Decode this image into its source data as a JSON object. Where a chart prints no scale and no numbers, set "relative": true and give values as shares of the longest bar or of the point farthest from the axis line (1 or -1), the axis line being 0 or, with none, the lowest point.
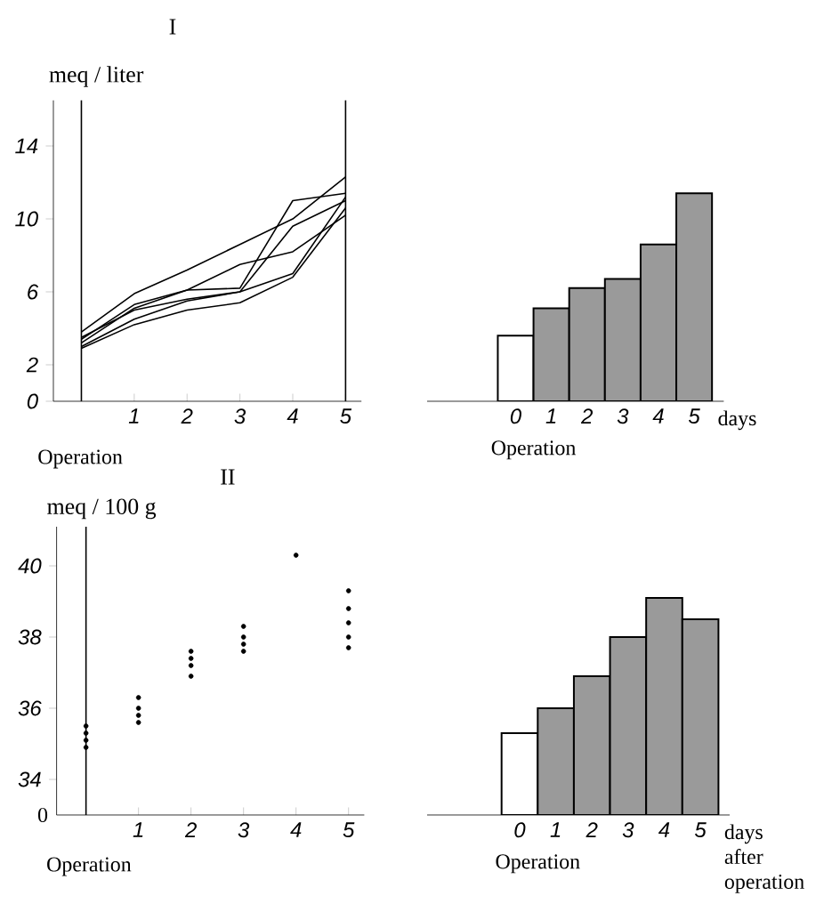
{
  "chart_data": [
    {
      "type": "line",
      "title": "I",
      "ylabel": "meq / liter",
      "x": [
        0,
        1,
        2,
        3,
        4,
        5
      ],
      "xlim": [
        -0.53,
        5.3
      ],
      "xticks": [
        1,
        2,
        3,
        4,
        5
      ],
      "ylim": [
        0,
        16.5
      ],
      "yticks": [
        0,
        2,
        6,
        10,
        14
      ],
      "ref_lines": [
        {
          "axis": "x",
          "value": 0
        },
        {
          "axis": "x",
          "value": 5
        }
      ],
      "annotations": [
        "Operation"
      ],
      "series": [
        {
          "color": "#000000",
          "values": [
            3.8,
            5.9,
            7.2,
            8.6,
            10.0,
            12.3
          ]
        },
        {
          "color": "#000000",
          "values": [
            3.4,
            5.3,
            6.1,
            6.2,
            11.0,
            11.4
          ]
        },
        {
          "color": "#000000",
          "values": [
            3.0,
            4.5,
            5.5,
            6.0,
            9.6,
            11.0
          ]
        },
        {
          "color": "#000000",
          "values": [
            2.9,
            4.2,
            5.0,
            5.4,
            6.8,
            10.6
          ]
        },
        {
          "color": "#000000",
          "values": [
            3.2,
            5.1,
            6.1,
            7.5,
            8.2,
            10.2
          ]
        },
        {
          "color": "#000000",
          "values": [
            3.5,
            5.0,
            5.6,
            6.0,
            7.0,
            11.2
          ]
        }
      ]
    },
    {
      "type": "bar",
      "xlabel": "days",
      "categories": [
        "0",
        "1",
        "2",
        "3",
        "4",
        "5"
      ],
      "values": [
        0.316,
        0.447,
        0.544,
        0.588,
        0.754,
        1
      ],
      "colors": [
        "#ffffff",
        "#9a9a9a",
        "#9a9a9a",
        "#9a9a9a",
        "#9a9a9a",
        "#9a9a9a"
      ],
      "relative": true,
      "tick_labels": "x",
      "annotations": [
        "Operation"
      ]
    },
    {
      "type": "scatter",
      "title": "II",
      "ylabel": "meq / 100 g",
      "xlim": [
        -0.56,
        5.3
      ],
      "xticks": [
        1,
        2,
        3,
        4,
        5
      ],
      "ylim": [
        33,
        41.1
      ],
      "yticks": [
        34,
        36,
        38,
        40
      ],
      "ref_lines": [
        {
          "axis": "x",
          "value": 0
        }
      ],
      "annotations": [
        "0",
        "Operation"
      ],
      "series": [
        {
          "color": "#000000",
          "x": [
            0,
            0,
            0,
            0,
            1,
            1,
            1,
            1,
            2,
            2,
            2,
            2,
            3,
            3,
            3,
            3,
            4,
            5,
            5,
            5,
            5,
            5
          ],
          "values": [
            34.9,
            35.1,
            35.3,
            35.5,
            35.6,
            35.8,
            36.0,
            36.3,
            36.9,
            37.2,
            37.4,
            37.6,
            37.6,
            37.8,
            38.0,
            38.3,
            40.3,
            37.7,
            38.0,
            38.4,
            38.8,
            39.3
          ]
        }
      ]
    },
    {
      "type": "bar",
      "xlabel": "days after operation",
      "categories": [
        "0",
        "1",
        "2",
        "3",
        "4",
        "5"
      ],
      "values": [
        0.377,
        0.492,
        0.639,
        0.82,
        1,
        0.902
      ],
      "colors": [
        "#ffffff",
        "#9a9a9a",
        "#9a9a9a",
        "#9a9a9a",
        "#9a9a9a",
        "#9a9a9a"
      ],
      "relative": true,
      "tick_labels": "x",
      "annotations": [
        "Operation"
      ]
    }
  ]
}
